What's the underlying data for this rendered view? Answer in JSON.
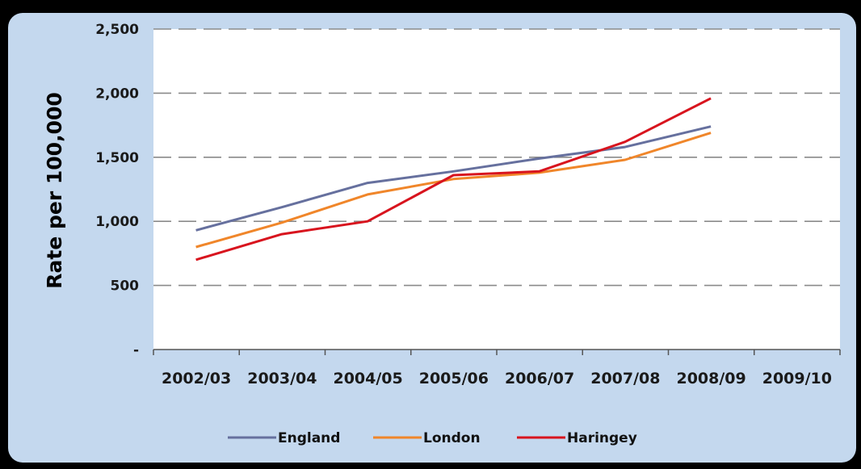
{
  "chart_data": {
    "type": "line",
    "title": "",
    "xlabel": "",
    "ylabel": "Rate per 100,000",
    "categories": [
      "2002/03",
      "2003/04",
      "2004/05",
      "2005/06",
      "2006/07",
      "2007/08",
      "2008/09",
      "2009/10"
    ],
    "ylim": [
      0,
      2500
    ],
    "yticks": [
      {
        "value": 0,
        "label": "-"
      },
      {
        "value": 500,
        "label": "500"
      },
      {
        "value": 1000,
        "label": "1,000"
      },
      {
        "value": 1500,
        "label": "1,500"
      },
      {
        "value": 2000,
        "label": "2,000"
      },
      {
        "value": 2500,
        "label": "2,500"
      }
    ],
    "grid": "horizontal dashed",
    "legend": "bottom",
    "series": [
      {
        "name": "England",
        "color": "#66709e",
        "values": [
          930,
          1110,
          1300,
          1390,
          1490,
          1580,
          1740,
          null
        ]
      },
      {
        "name": "London",
        "color": "#f0862a",
        "values": [
          800,
          990,
          1210,
          1330,
          1380,
          1480,
          1690,
          null
        ]
      },
      {
        "name": "Haringey",
        "color": "#d8141e",
        "values": [
          700,
          900,
          1000,
          1360,
          1390,
          1620,
          1960,
          null
        ]
      }
    ]
  }
}
